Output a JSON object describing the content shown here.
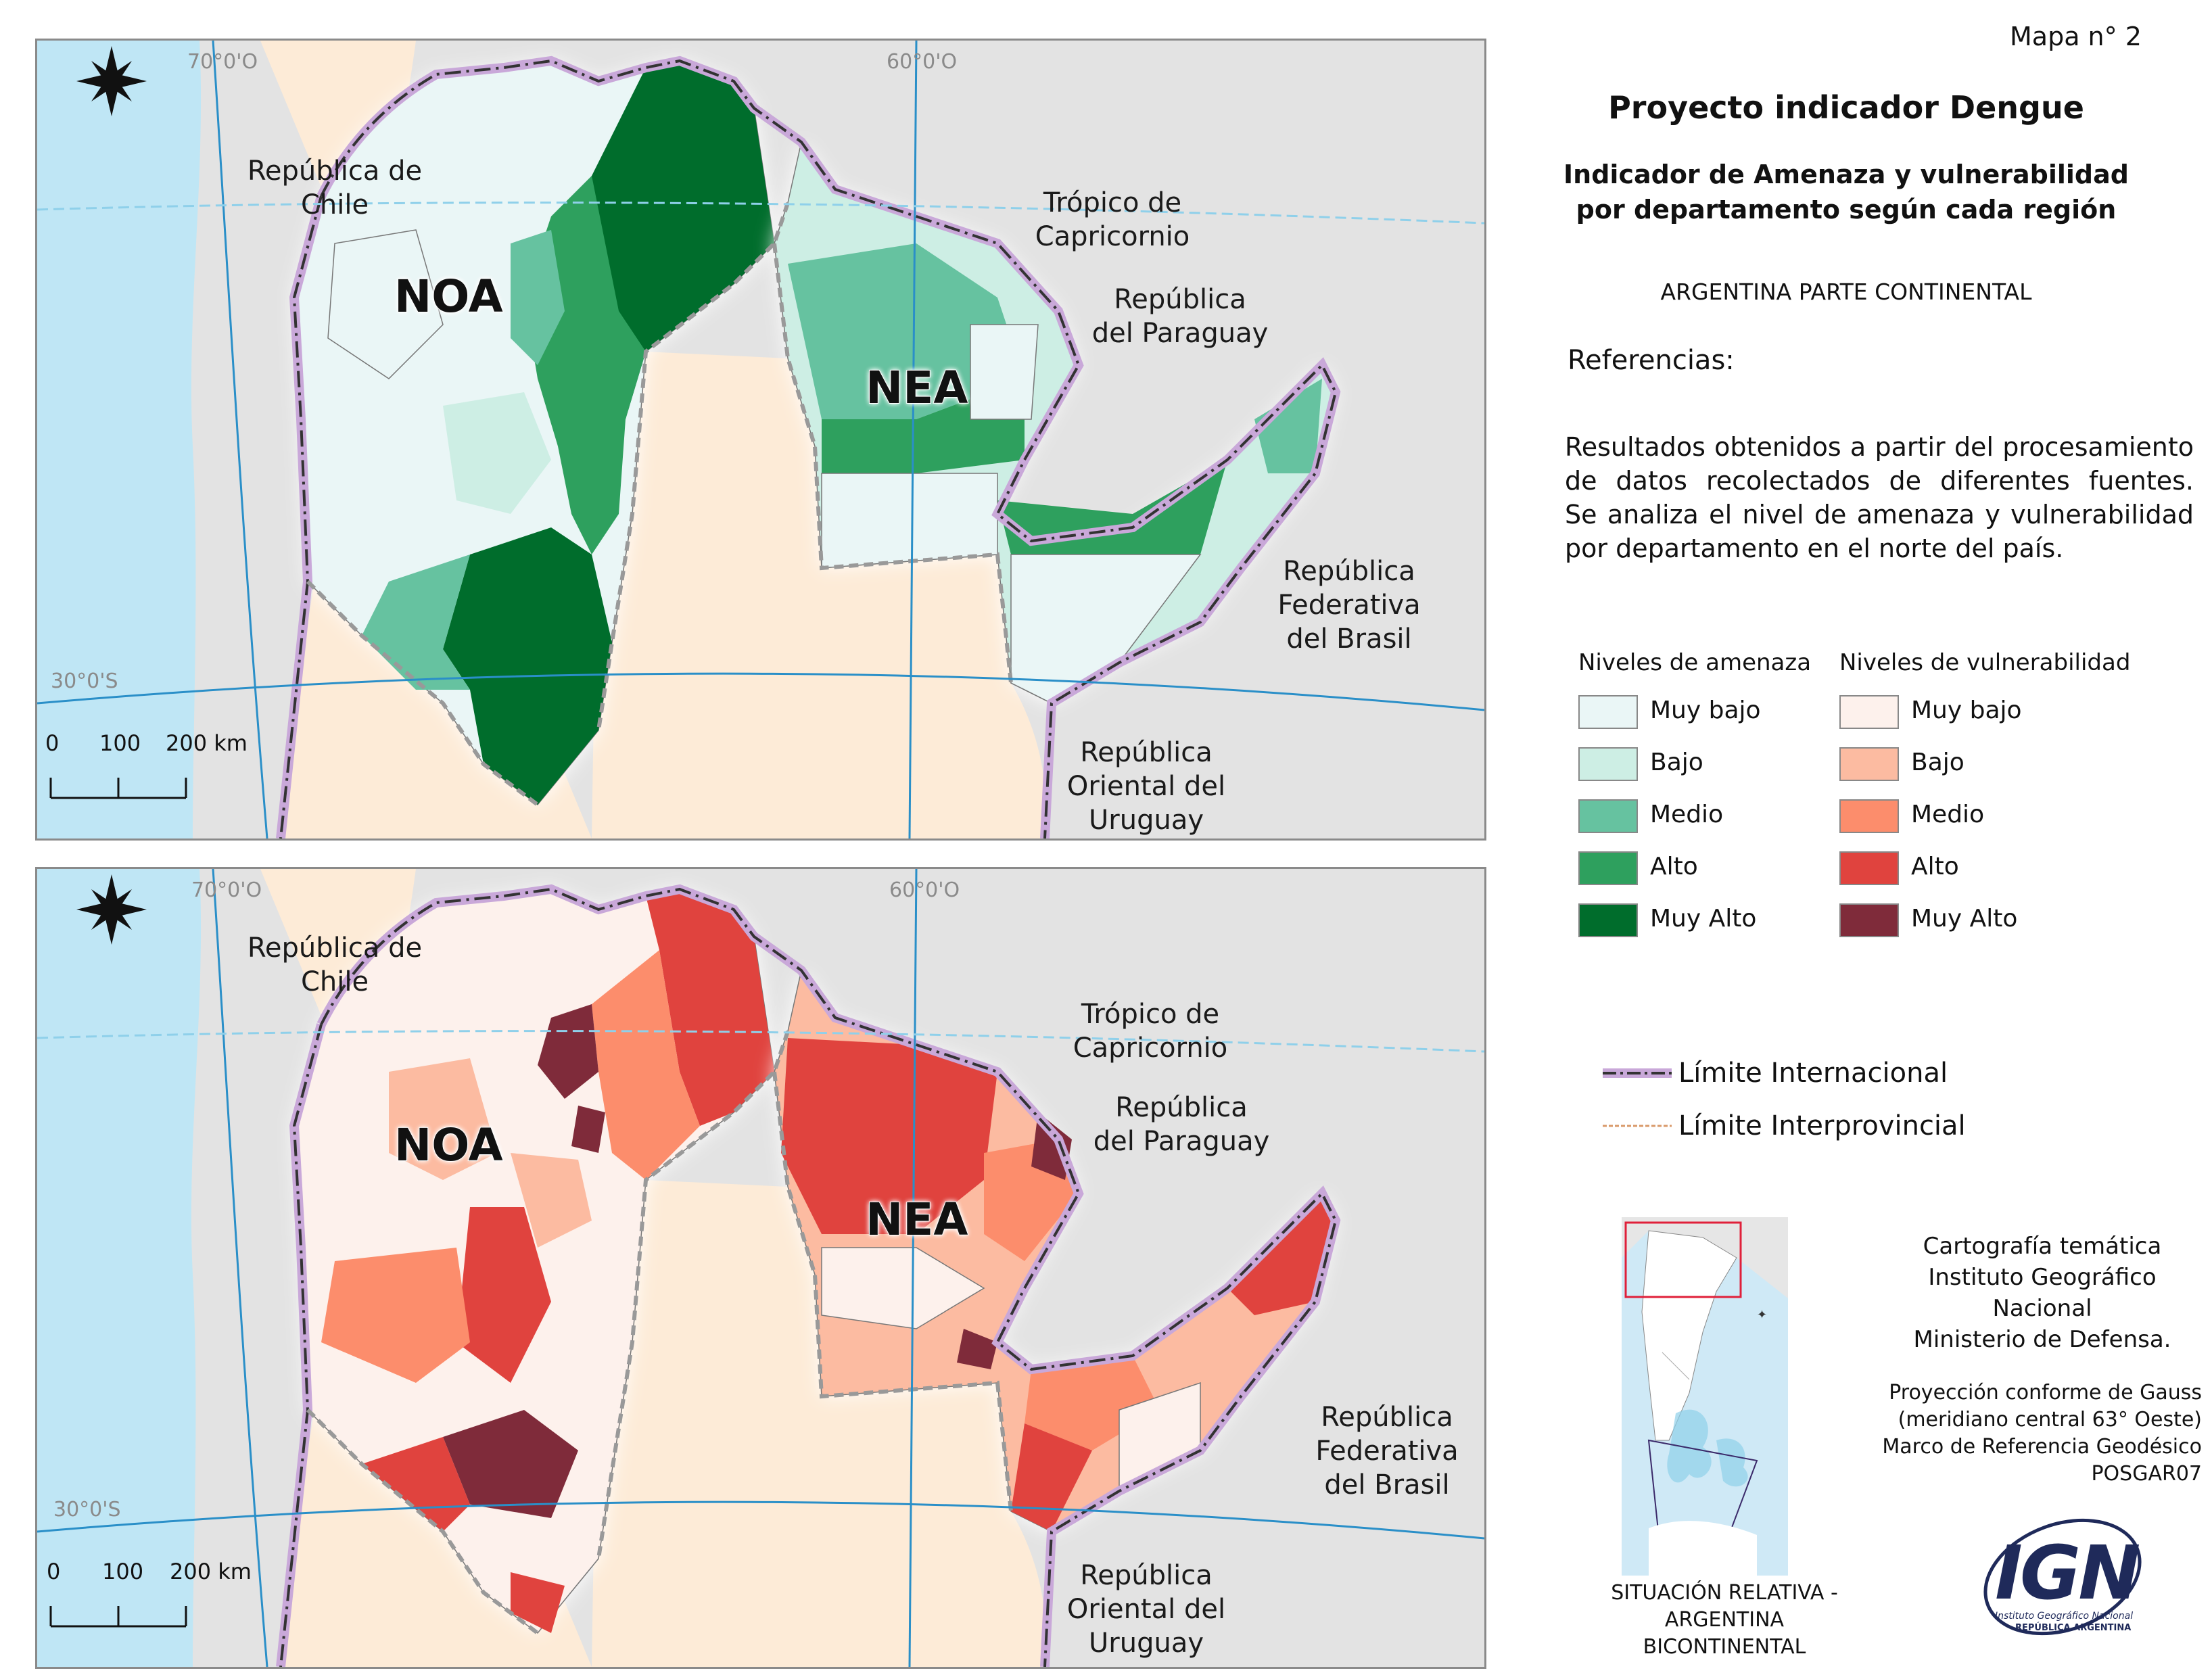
{
  "header": {
    "map_number": "Mapa n° 2",
    "title": "Proyecto indicador Dengue",
    "subtitle_line1": "Indicador de Amenaza y vulnerabilidad",
    "subtitle_line2": "por departamento según cada región",
    "scope": "ARGENTINA PARTE CONTINENTAL"
  },
  "references": {
    "heading": "Referencias:",
    "description_lines": [
      "Resultados obtenidos a partir del procesamiento",
      "de datos recolectados de diferentes fuentes.",
      "Se analiza el nivel de amenaza y vulnerabilidad",
      "por departamento en el norte del país."
    ]
  },
  "legend": {
    "threat": {
      "title": "Niveles de amenaza",
      "items": [
        {
          "label": "Muy bajo",
          "color": "#eaf6f6"
        },
        {
          "label": "Bajo",
          "color": "#cdeee4"
        },
        {
          "label": "Medio",
          "color": "#66c2a0"
        },
        {
          "label": "Alto",
          "color": "#2ea05e"
        },
        {
          "label": "Muy Alto",
          "color": "#006d2c"
        }
      ]
    },
    "vulnerability": {
      "title": "Niveles de vulnerabilidad",
      "items": [
        {
          "label": "Muy bajo",
          "color": "#fdf1ec"
        },
        {
          "label": "Bajo",
          "color": "#fcbba1"
        },
        {
          "label": "Medio",
          "color": "#fc8d6c"
        },
        {
          "label": "Alto",
          "color": "#e0433e"
        },
        {
          "label": "Muy Alto",
          "color": "#7f2b3a"
        }
      ]
    },
    "lines": [
      {
        "label": "Límite Internacional"
      },
      {
        "label": "Límite Interprovincial"
      }
    ]
  },
  "maps": {
    "labels": {
      "chile": [
        "República de",
        "Chile"
      ],
      "tropic": [
        "Trópico de",
        "Capricornio"
      ],
      "paraguay": [
        "República",
        "del Paraguay"
      ],
      "brasil": [
        "República",
        "Federativa",
        "del Brasil"
      ],
      "uruguay": [
        "República",
        "Oriental del",
        "Uruguay"
      ],
      "noa": "NOA",
      "nea": "NEA",
      "lon70": "70°0'O",
      "lon60": "60°0'O",
      "lat30": "30°0'S"
    },
    "scale": {
      "t0": "0",
      "t1": "100",
      "t2": "200 km"
    }
  },
  "inset": {
    "caption": [
      "SITUACIÓN RELATIVA -",
      "ARGENTINA",
      "BICONTINENTAL"
    ]
  },
  "credits": {
    "lines": [
      "Cartografía temática",
      "Instituto Geográfico",
      "Nacional",
      "Ministerio de Defensa."
    ],
    "projection": [
      "Proyección conforme de Gauss",
      "(meridiano central 63° Oeste)",
      "Marco de Referencia Geodésico",
      "POSGAR07"
    ]
  },
  "logo": {
    "text": "IGN",
    "sub1": "Instituto Geográfico Nacional",
    "sub2": "REPÚBLICA ARGENTINA"
  }
}
